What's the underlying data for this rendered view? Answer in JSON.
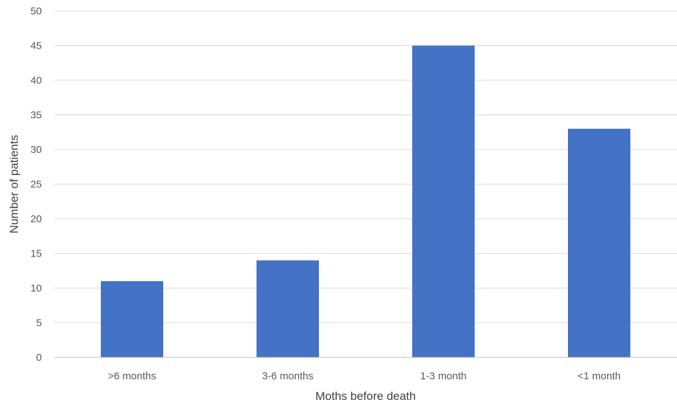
{
  "chart_data": {
    "type": "bar",
    "categories": [
      ">6 months",
      "3-6 months",
      "1-3 month",
      "<1 month"
    ],
    "values": [
      11,
      14,
      45,
      33
    ],
    "title": "",
    "xlabel": "Moths before death",
    "ylabel": "Number of patients",
    "ylim": [
      0,
      50
    ],
    "yticks": [
      0,
      5,
      10,
      15,
      20,
      25,
      30,
      35,
      40,
      45,
      50
    ],
    "grid": true,
    "bar_color": "#4472C4"
  }
}
